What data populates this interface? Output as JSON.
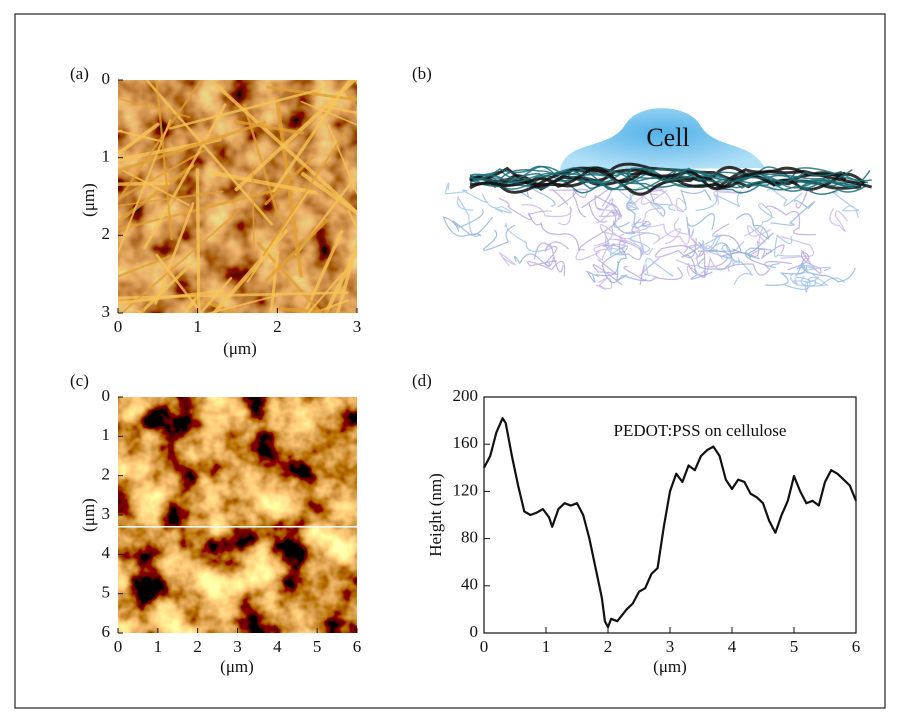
{
  "panels": [
    {
      "label": "(a)",
      "xticks": [
        0,
        1,
        2,
        3
      ],
      "yticks": [
        0,
        1,
        2,
        3
      ],
      "xlim": [
        0,
        3
      ],
      "ylim": [
        0,
        3
      ],
      "xlabel": "(μm)",
      "ylabel": "(μm)"
    },
    {
      "label": "(b)",
      "text": "Cell"
    },
    {
      "label": "(c)",
      "xticks": [
        0,
        1,
        2,
        3,
        4,
        5,
        6
      ],
      "yticks": [
        0,
        1,
        2,
        3,
        4,
        5,
        6
      ],
      "xlim": [
        0,
        6
      ],
      "ylim": [
        0,
        6
      ],
      "xlabel": "(μm)",
      "ylabel": "(μm)",
      "profile_line_y": 3.3
    }
  ],
  "chart_data": {
    "type": "line",
    "label": "(d)",
    "annotation": "PEDOT:PSS on cellulose",
    "xlabel": "(μm)",
    "ylabel": "Height (nm)",
    "xlim": [
      0,
      6
    ],
    "ylim": [
      0,
      200
    ],
    "xticks": [
      0,
      1,
      2,
      3,
      4,
      5,
      6
    ],
    "yticks": [
      0,
      40,
      80,
      120,
      160,
      200
    ],
    "x": [
      0,
      0.1,
      0.2,
      0.3,
      0.35,
      0.45,
      0.55,
      0.65,
      0.75,
      0.85,
      0.95,
      1.05,
      1.1,
      1.2,
      1.3,
      1.4,
      1.5,
      1.6,
      1.7,
      1.8,
      1.9,
      1.95,
      2.0,
      2.05,
      2.15,
      2.3,
      2.4,
      2.5,
      2.6,
      2.7,
      2.8,
      2.9,
      3.0,
      3.1,
      3.2,
      3.3,
      3.4,
      3.5,
      3.6,
      3.7,
      3.8,
      3.9,
      4.0,
      4.1,
      4.2,
      4.3,
      4.4,
      4.5,
      4.6,
      4.7,
      4.8,
      4.9,
      5.0,
      5.1,
      5.2,
      5.3,
      5.4,
      5.5,
      5.6,
      5.7,
      5.8,
      5.9,
      6.0
    ],
    "series": [
      {
        "color": "#111111",
        "values": [
          140,
          150,
          170,
          182,
          178,
          150,
          125,
          103,
          100,
          102,
          105,
          98,
          90,
          105,
          110,
          108,
          110,
          100,
          80,
          55,
          30,
          10,
          5,
          12,
          10,
          20,
          25,
          35,
          38,
          50,
          55,
          90,
          120,
          135,
          128,
          142,
          138,
          150,
          155,
          158,
          150,
          130,
          122,
          130,
          128,
          118,
          115,
          110,
          95,
          85,
          100,
          112,
          133,
          120,
          110,
          112,
          108,
          128,
          138,
          135,
          130,
          125,
          112
        ]
      }
    ]
  }
}
